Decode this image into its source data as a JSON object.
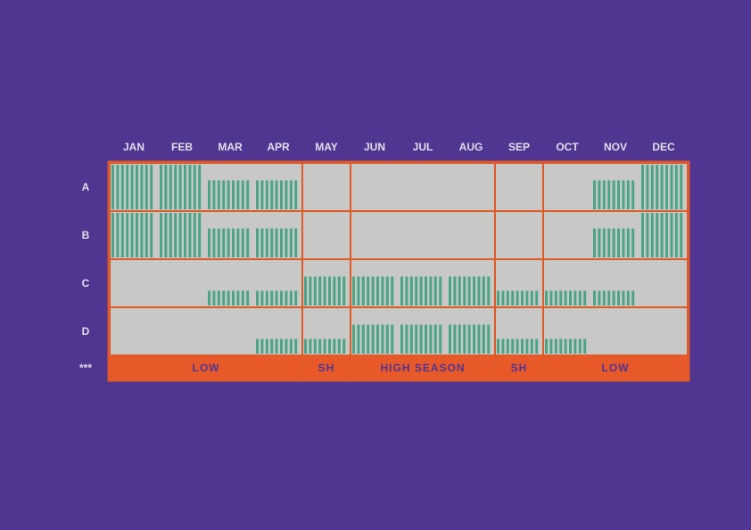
{
  "colors": {
    "background": "#503591",
    "grid": "#e05a27",
    "cell": "#c8c8c6",
    "bar": "#4aa586",
    "month_text": "#e2ddea",
    "season_text": "#503591",
    "season_band": "#e8592a"
  },
  "chart_data": {
    "type": "heatmap",
    "title": "",
    "xlabel": "",
    "ylabel": "",
    "months": [
      "JAN",
      "FEB",
      "MAR",
      "APR",
      "MAY",
      "JUN",
      "JUL",
      "AUG",
      "SEP",
      "OCT",
      "NOV",
      "DEC"
    ],
    "rows": [
      {
        "label": "A",
        "values": [
          1.0,
          1.0,
          0.65,
          0.65,
          0.0,
          0.0,
          0.0,
          0.0,
          0.0,
          0.0,
          0.65,
          1.0
        ]
      },
      {
        "label": "B",
        "values": [
          1.0,
          1.0,
          0.65,
          0.65,
          0.0,
          0.0,
          0.0,
          0.0,
          0.0,
          0.0,
          0.65,
          1.0
        ]
      },
      {
        "label": "C",
        "values": [
          0.0,
          0.0,
          0.33,
          0.33,
          0.65,
          0.65,
          0.65,
          0.65,
          0.33,
          0.33,
          0.33,
          0.0
        ]
      },
      {
        "label": "D",
        "values": [
          0.0,
          0.0,
          0.0,
          0.33,
          0.33,
          0.65,
          0.65,
          0.65,
          0.33,
          0.33,
          0.0,
          0.0
        ]
      }
    ],
    "value_scale": "fraction of cell height filled",
    "seasons": {
      "row_label": "***",
      "bands": [
        {
          "label": "LOW",
          "start_month": 1,
          "end_month": 4
        },
        {
          "label": "SH",
          "start_month": 5,
          "end_month": 5
        },
        {
          "label": "HIGH SEASON",
          "start_month": 6,
          "end_month": 8
        },
        {
          "label": "SH",
          "start_month": 9,
          "end_month": 9
        },
        {
          "label": "LOW",
          "start_month": 10,
          "end_month": 12
        }
      ]
    }
  }
}
